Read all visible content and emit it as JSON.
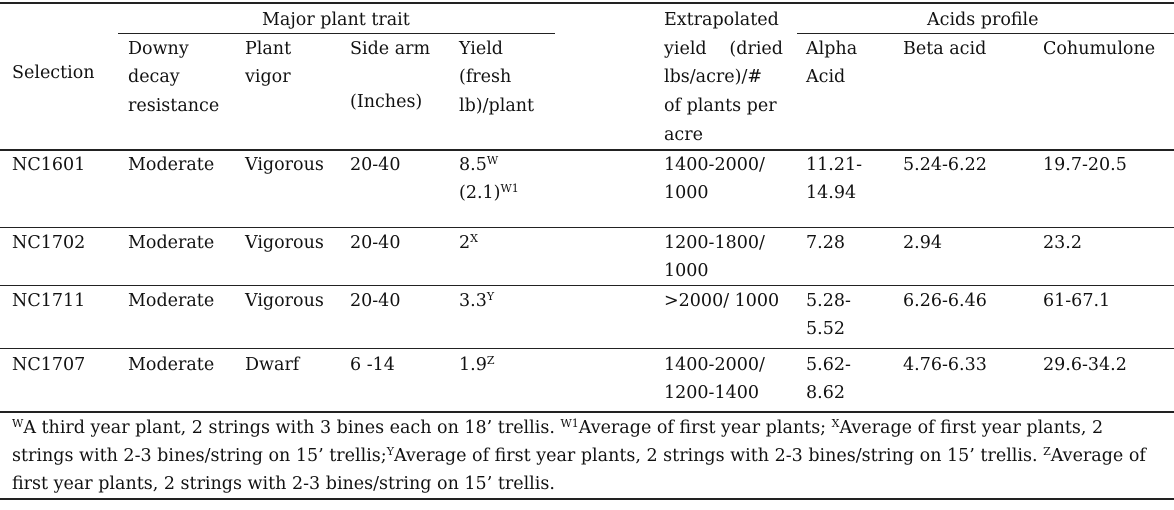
{
  "header": {
    "group_major": "Major  plant trait",
    "group_acids": "Acids profile",
    "selection": "Selection",
    "downy": [
      "Downy",
      "decay",
      "resistance"
    ],
    "vigor": [
      "Plant",
      "vigor"
    ],
    "side_arm": [
      "Side arm",
      "(Inches)"
    ],
    "yield": [
      "Yield",
      "(fresh",
      "lb)/plant"
    ],
    "extrapolated": [
      "Extrapolated",
      "yield   (dried",
      "lbs/acre)/#",
      "of plants per",
      "acre"
    ],
    "alpha": [
      "Alpha",
      "Acid"
    ],
    "beta": "Beta acid",
    "cohumulone": "Cohumulone"
  },
  "rows": [
    {
      "selection": "NC1601",
      "downy": "Moderate",
      "vigor": "Vigorous",
      "side_arm": "20-40",
      "yield": "8.5",
      "yield_sup": "W",
      "yield2": "(2.1)",
      "yield2_sup": "W1",
      "extrap": [
        "1400-2000/",
        "1000"
      ],
      "alpha": [
        "11.21-",
        "14.94"
      ],
      "beta": "5.24-6.22",
      "cohumulone": "19.7-20.5"
    },
    {
      "selection": "NC1702",
      "downy": "Moderate",
      "vigor": "Vigorous",
      "side_arm": "20-40",
      "yield": "2",
      "yield_sup": "X",
      "extrap": [
        "1200-1800/",
        "1000"
      ],
      "alpha": [
        "7.28"
      ],
      "beta": "2.94",
      "cohumulone": "23.2"
    },
    {
      "selection": "NC1711",
      "downy": "Moderate",
      "vigor": "Vigorous",
      "side_arm": "20-40",
      "yield": "3.3",
      "yield_sup": "Y",
      "extrap": [
        ">2000/ 1000"
      ],
      "alpha": [
        "5.28-",
        "5.52"
      ],
      "beta": "6.26-6.46",
      "cohumulone": "61-67.1"
    },
    {
      "selection": "NC1707",
      "downy": "Moderate",
      "vigor": "Dwarf",
      "side_arm": "6 -14",
      "yield": "1.9",
      "yield_sup": "Z",
      "extrap": [
        "1400-2000/",
        "1200-1400"
      ],
      "alpha": [
        "5.62-",
        "8.62"
      ],
      "beta": "4.76-6.33",
      "cohumulone": "29.6-34.2"
    }
  ],
  "footnote": {
    "w_sup": "W",
    "w_text": "A third year plant, 2 strings with 3 bines each on 18’ trellis. ",
    "w1_sup": "W1",
    "w1_text": "Average of first year plants; ",
    "x_sup": "X",
    "x_text": "Average of first year plants, 2 strings with 2-3 bines/string on 15’ trellis;",
    "y_sup": "Y",
    "y_text": "Average of first year plants, 2 strings with 2-3 bines/string on 15’ trellis. ",
    "z_sup": "Z",
    "z_text": "Average of first year plants, 2 strings with 2-3 bines/string on 15’ trellis."
  }
}
